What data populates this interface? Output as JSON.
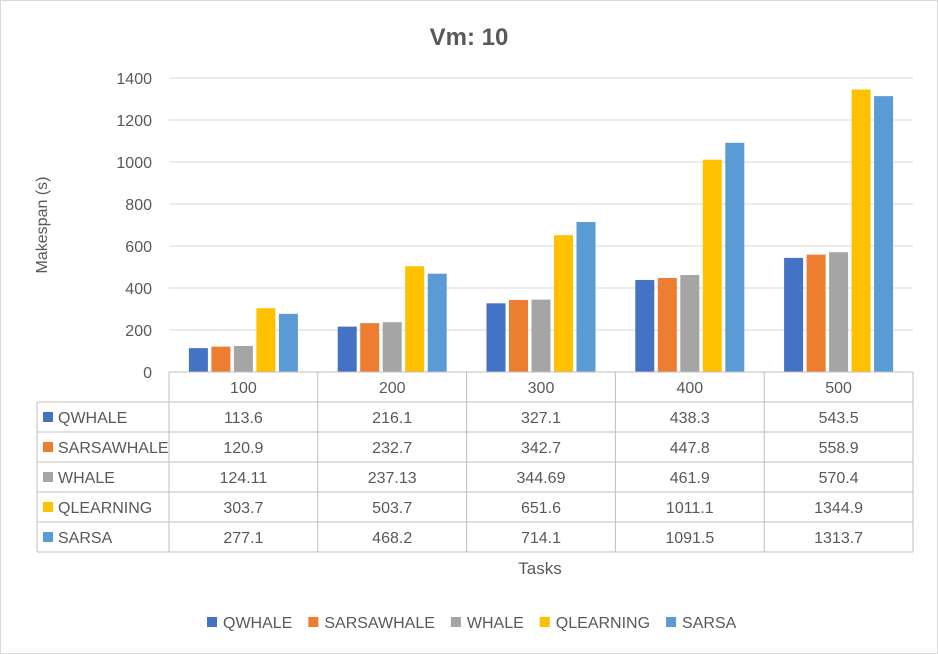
{
  "chart_data": {
    "type": "bar",
    "title": "Vm: 10",
    "xlabel": "Tasks",
    "ylabel": "Makespan (s)",
    "ylim": [
      0,
      1400
    ],
    "ytick_step": 200,
    "grid": true,
    "legend_position": "bottom",
    "categories": [
      "100",
      "200",
      "300",
      "400",
      "500"
    ],
    "series": [
      {
        "name": "QWHALE",
        "color": "#4472c4",
        "values": [
          113.6,
          216.1,
          327.1,
          438.3,
          543.5
        ],
        "labels": [
          "113.6",
          "216.1",
          "327.1",
          "438.3",
          "543.5"
        ]
      },
      {
        "name": "SARSAWHALE",
        "color": "#ed7d31",
        "values": [
          120.9,
          232.7,
          342.7,
          447.8,
          558.9
        ],
        "labels": [
          "120.9",
          "232.7",
          "342.7",
          "447.8",
          "558.9"
        ]
      },
      {
        "name": "WHALE",
        "color": "#a5a5a5",
        "values": [
          124.11,
          237.13,
          344.69,
          461.9,
          570.4
        ],
        "labels": [
          "124.11",
          "237.13",
          "344.69",
          "461.9",
          "570.4"
        ]
      },
      {
        "name": "QLEARNING",
        "color": "#ffc000",
        "values": [
          303.7,
          503.7,
          651.6,
          1011.1,
          1344.9
        ],
        "labels": [
          "303.7",
          "503.7",
          "651.6",
          "1011.1",
          "1344.9"
        ]
      },
      {
        "name": "SARSA",
        "color": "#5b9bd5",
        "values": [
          277.1,
          468.2,
          714.1,
          1091.5,
          1313.7
        ],
        "labels": [
          "277.1",
          "468.2",
          "714.1",
          "1091.5",
          "1313.7"
        ]
      }
    ]
  }
}
